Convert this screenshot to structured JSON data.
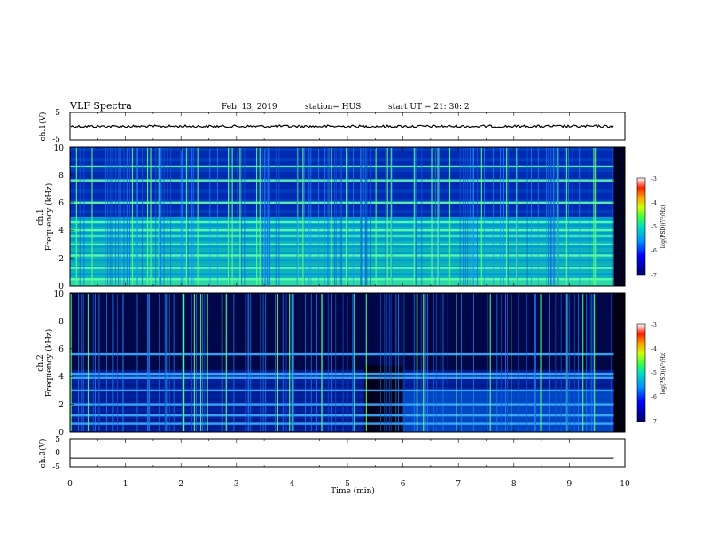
{
  "header": {
    "title": "VLF Spectra",
    "date": "Feb. 13, 2019",
    "station": "station= HUS",
    "start": "start  UT  =   21: 30: 2"
  },
  "colorbar": {
    "label": "log(PSD)(V²/Hz)",
    "ticks": [
      "-3",
      "-4",
      "-5",
      "-6",
      "-7"
    ]
  },
  "chart_data": [
    {
      "type": "line",
      "name": "ch1-waveform",
      "ylabel": "ch.1(V)",
      "ylim": [
        -5,
        5
      ],
      "yticks": [
        "5",
        "-5"
      ],
      "x": [
        0,
        9.8
      ],
      "y": [
        0,
        0
      ],
      "xlim": [
        0,
        10
      ]
    },
    {
      "type": "heatmap",
      "name": "ch1-spectrogram",
      "ylabel": "ch.1",
      "ylabel2": "Frequency (kHz)",
      "ylim": [
        0,
        10
      ],
      "yticks": [
        "0",
        "2",
        "4",
        "6",
        "8",
        "10"
      ],
      "xlim": [
        0,
        10
      ],
      "data_extent_min": 9.8,
      "zlim": [
        -7,
        -3
      ],
      "horizontal_bands_khz": [
        0.5,
        1.3,
        2.2,
        3.0,
        3.6,
        4.0,
        4.6,
        6.0,
        7.6,
        8.6
      ]
    },
    {
      "type": "heatmap",
      "name": "ch2-spectrogram",
      "ylabel": "ch.2",
      "ylabel2": "Frequency (kHz)",
      "ylim": [
        0,
        10
      ],
      "yticks": [
        "0",
        "2",
        "4",
        "6",
        "8",
        "10"
      ],
      "xlim": [
        0,
        10
      ],
      "data_extent_min": 9.8,
      "zlim": [
        -7,
        -3
      ],
      "horizontal_bands_khz": [
        0.6,
        1.2,
        2.0,
        3.0,
        3.9,
        4.2,
        5.6
      ]
    },
    {
      "type": "line",
      "name": "ch3-waveform",
      "ylabel": "ch.3(V)",
      "ylim": [
        -5,
        5
      ],
      "yticks": [
        "5",
        "0",
        "-5"
      ],
      "x": [
        0,
        9.8
      ],
      "y": [
        -1.8,
        -1.8
      ],
      "xlim": [
        0,
        10
      ]
    }
  ],
  "xaxis": {
    "label": "Time (min)",
    "ticks": [
      "0",
      "1",
      "2",
      "3",
      "4",
      "5",
      "6",
      "7",
      "8",
      "9",
      "10"
    ]
  }
}
